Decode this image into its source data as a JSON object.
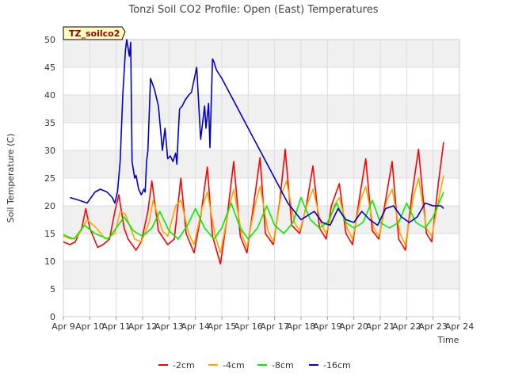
{
  "chart_data": {
    "type": "line",
    "title": "Tonzi Soil CO2 Profile: Open (East) Temperatures",
    "xlabel": "Time",
    "ylabel": "Soil Temperature (C)",
    "ylim": [
      0,
      50
    ],
    "xlim": [
      0,
      15
    ],
    "x_is_days_after": "Apr 9",
    "y_ticks": [
      "0",
      "5",
      "10",
      "15",
      "20",
      "25",
      "30",
      "35",
      "40",
      "45",
      "50"
    ],
    "x_ticks": [
      "Apr 9",
      "Apr 10",
      "Apr 11",
      "Apr 12",
      "Apr 13",
      "Apr 14",
      "Apr 15",
      "Apr 16",
      "Apr 17",
      "Apr 18",
      "Apr 19",
      "Apr 20",
      "Apr 21",
      "Apr 22",
      "Apr 23",
      "Apr 24"
    ],
    "grid": true,
    "legend_position": "bottom",
    "site_label": "TZ_soilco2",
    "colors": {
      "-2cm": "#ff0000",
      "-4cm": "#ffa500",
      "-8cm": "#00ee00",
      "-16cm": "#0000cc"
    },
    "series": [
      {
        "name": "-2cm",
        "x": [
          0.0,
          0.25,
          0.45,
          0.7,
          0.85,
          1.0,
          1.3,
          1.5,
          1.75,
          1.95,
          2.1,
          2.3,
          2.45,
          2.75,
          2.95,
          3.2,
          3.35,
          3.6,
          3.95,
          4.2,
          4.45,
          4.65,
          4.95,
          5.2,
          5.45,
          5.65,
          5.95,
          6.2,
          6.45,
          6.7,
          6.95,
          7.2,
          7.45,
          7.65,
          7.95,
          8.2,
          8.4,
          8.65,
          8.95,
          9.2,
          9.45,
          9.7,
          9.95,
          10.15,
          10.45,
          10.7,
          10.95,
          11.2,
          11.45,
          11.7,
          11.95,
          12.2,
          12.45,
          12.7,
          12.95,
          13.2,
          13.45,
          13.75,
          13.95,
          14.2,
          14.4
        ],
        "y": [
          13.5,
          13.0,
          13.5,
          16.0,
          19.5,
          16.0,
          12.5,
          13.0,
          14.0,
          19.0,
          22.0,
          16.0,
          14.0,
          12.0,
          13.5,
          19.0,
          24.5,
          15.5,
          13.0,
          14.0,
          25.0,
          15.0,
          11.5,
          18.0,
          27.0,
          14.5,
          9.5,
          18.0,
          28.0,
          14.5,
          11.5,
          20.0,
          28.7,
          15.0,
          13.0,
          21.0,
          30.2,
          16.5,
          15.0,
          20.0,
          27.2,
          16.0,
          14.0,
          20.0,
          24.0,
          15.0,
          13.0,
          21.0,
          28.5,
          15.5,
          14.0,
          21.0,
          28.0,
          14.0,
          12.0,
          22.0,
          30.2,
          15.0,
          13.5,
          24.0,
          31.5
        ]
      },
      {
        "name": "-4cm",
        "x": [
          0.0,
          0.3,
          0.55,
          0.9,
          1.25,
          1.6,
          1.95,
          2.15,
          2.35,
          2.7,
          2.95,
          3.25,
          3.4,
          3.75,
          3.95,
          4.25,
          4.45,
          4.75,
          4.95,
          5.25,
          5.45,
          5.75,
          5.95,
          6.25,
          6.45,
          6.75,
          6.95,
          7.25,
          7.45,
          7.75,
          7.95,
          8.25,
          8.45,
          8.75,
          8.95,
          9.25,
          9.45,
          9.75,
          9.95,
          10.25,
          10.45,
          10.75,
          10.95,
          11.25,
          11.45,
          11.75,
          11.95,
          12.25,
          12.45,
          12.75,
          12.95,
          13.25,
          13.45,
          13.75,
          13.95,
          14.25,
          14.4
        ],
        "y": [
          14.5,
          14.0,
          14.5,
          17.5,
          16.0,
          14.0,
          15.0,
          19.0,
          18.5,
          14.0,
          13.5,
          17.0,
          21.0,
          15.5,
          14.5,
          20.0,
          21.0,
          15.0,
          13.0,
          19.5,
          22.5,
          14.5,
          11.5,
          19.0,
          23.0,
          15.0,
          12.5,
          20.0,
          23.5,
          15.5,
          13.5,
          22.0,
          24.5,
          17.0,
          15.5,
          20.5,
          23.0,
          17.0,
          15.0,
          20.0,
          21.5,
          16.0,
          14.0,
          21.0,
          23.5,
          16.0,
          14.5,
          21.0,
          23.0,
          15.0,
          13.0,
          21.5,
          25.0,
          16.0,
          14.5,
          22.0,
          25.5
        ]
      },
      {
        "name": "-8cm",
        "x": [
          0.0,
          0.4,
          0.8,
          1.2,
          1.7,
          2.0,
          2.3,
          2.65,
          3.0,
          3.35,
          3.65,
          4.0,
          4.35,
          4.7,
          5.0,
          5.35,
          5.7,
          6.0,
          6.35,
          6.7,
          7.0,
          7.35,
          7.7,
          8.0,
          8.35,
          8.7,
          9.0,
          9.35,
          9.7,
          10.0,
          10.35,
          10.7,
          11.0,
          11.35,
          11.7,
          12.0,
          12.35,
          12.7,
          13.0,
          13.35,
          13.7,
          14.0,
          14.4
        ],
        "y": [
          14.8,
          14.0,
          16.5,
          15.0,
          14.0,
          16.0,
          18.0,
          15.5,
          14.5,
          16.0,
          19.0,
          15.5,
          14.0,
          16.5,
          19.5,
          16.0,
          14.0,
          16.0,
          20.5,
          16.0,
          14.0,
          16.0,
          20.0,
          16.5,
          15.0,
          17.0,
          21.5,
          17.5,
          16.0,
          17.0,
          20.5,
          17.0,
          16.0,
          17.0,
          21.0,
          17.0,
          16.0,
          17.0,
          20.5,
          17.0,
          16.0,
          18.0,
          22.5
        ]
      },
      {
        "name": "-16cm",
        "x": [
          0.25,
          0.6,
          0.9,
          1.2,
          1.4,
          1.65,
          1.85,
          1.95,
          2.05,
          2.15,
          2.25,
          2.35,
          2.4,
          2.45,
          2.5,
          2.55,
          2.6,
          2.7,
          2.75,
          2.85,
          2.9,
          2.95,
          3.05,
          3.1,
          3.15,
          3.2,
          3.3,
          3.45,
          3.6,
          3.75,
          3.85,
          3.95,
          4.05,
          4.15,
          4.25,
          4.3,
          4.35,
          4.4,
          4.5,
          4.55,
          4.6,
          4.75,
          4.85,
          5.05,
          5.2,
          5.35,
          5.4,
          5.5,
          5.55,
          5.65,
          5.7,
          5.75,
          5.8,
          6.0,
          6.5,
          7.0,
          7.5,
          8.0,
          8.5,
          9.0,
          9.5,
          9.8,
          10.1,
          10.4,
          10.7,
          11.0,
          11.3,
          11.6,
          11.9,
          12.2,
          12.5,
          12.8,
          13.1,
          13.4,
          13.7,
          14.0,
          14.3,
          14.4
        ],
        "y": [
          21.5,
          21.0,
          20.5,
          22.5,
          23.0,
          22.5,
          21.5,
          20.5,
          22.5,
          28.0,
          40.0,
          48.0,
          50.0,
          48.5,
          47.0,
          49.5,
          28.0,
          25.0,
          25.5,
          23.0,
          22.5,
          22.0,
          23.0,
          22.5,
          28.0,
          30.0,
          43.0,
          41.0,
          38.0,
          30.0,
          34.0,
          28.5,
          29.0,
          28.0,
          29.5,
          27.5,
          33.0,
          37.5,
          38.0,
          38.5,
          39.0,
          40.0,
          40.5,
          45.0,
          32.0,
          38.0,
          34.0,
          38.5,
          30.5,
          46.5,
          46.0,
          45.2,
          44.5,
          43.0,
          38.5,
          34.0,
          29.5,
          25.0,
          20.5,
          17.5,
          19.0,
          17.0,
          16.5,
          19.5,
          17.5,
          17.0,
          19.0,
          17.5,
          16.5,
          19.5,
          20.0,
          18.0,
          17.0,
          18.0,
          20.5,
          20.0,
          20.0,
          19.5
        ]
      }
    ]
  }
}
